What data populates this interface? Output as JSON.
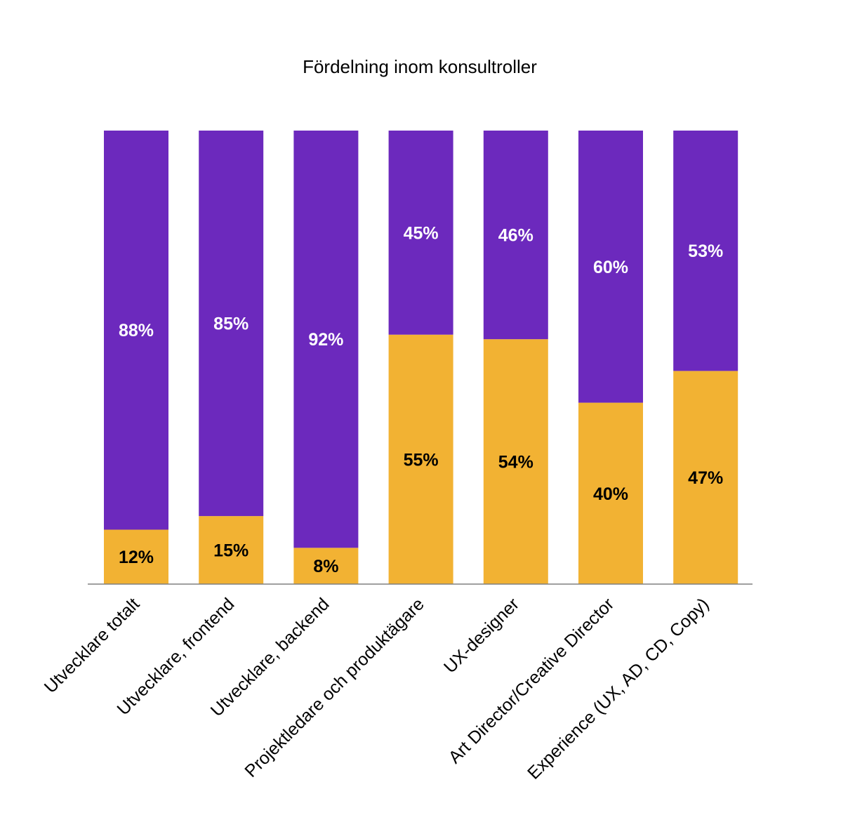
{
  "chart_data": {
    "type": "bar",
    "stacked": true,
    "normalized": true,
    "title": "Fördelning inom konsultroller",
    "xlabel": "",
    "ylabel": "",
    "ylim": [
      0,
      100
    ],
    "grid": false,
    "legend": "none",
    "categories": [
      "Utvecklare totalt",
      "Utvecklare, frontend",
      "Utvecklare, backend",
      "Projektledare och produktägare",
      "UX-designer",
      "Art Director/Creative Director",
      "Experience (UX, AD, CD, Copy)"
    ],
    "series": [
      {
        "values": [
          12,
          15,
          8,
          55,
          54,
          40,
          47
        ],
        "labels": [
          "12%",
          "15%",
          "8%",
          "55%",
          "54%",
          "40%",
          "47%"
        ],
        "color": "#F2B233",
        "label_color": "#000000"
      },
      {
        "values": [
          88,
          85,
          92,
          45,
          46,
          60,
          53
        ],
        "labels": [
          "88%",
          "85%",
          "92%",
          "45%",
          "46%",
          "60%",
          "53%"
        ],
        "color": "#6C29BD",
        "label_color": "#FFFFFF"
      }
    ],
    "axis_color": "#808080"
  }
}
